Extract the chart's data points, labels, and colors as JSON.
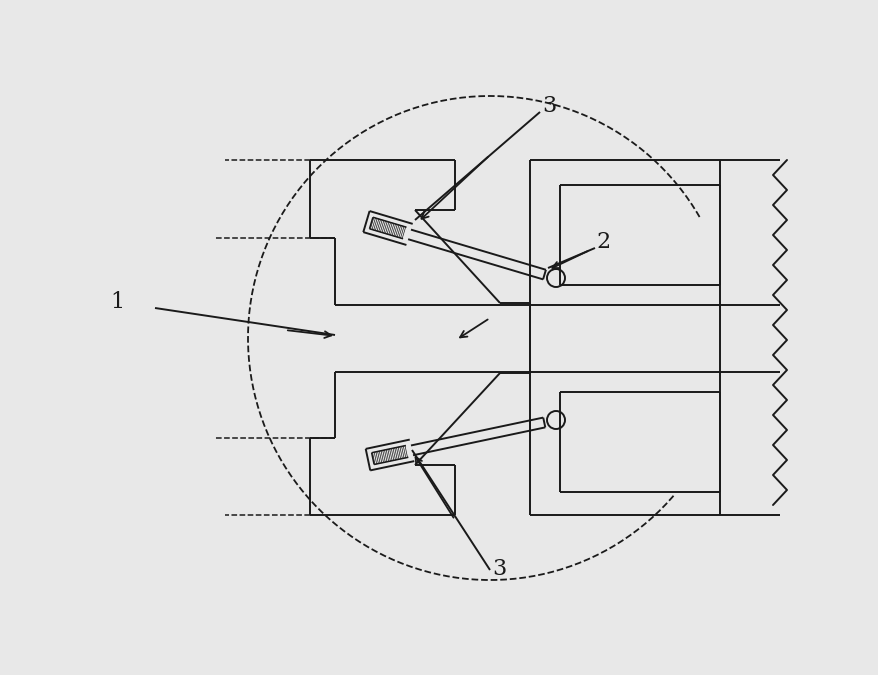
{
  "bg_color": "#e8e8e8",
  "line_color": "#1a1a1a",
  "label_1": "1",
  "label_2": "2",
  "label_3_top": "3",
  "label_3_bot": "3",
  "figsize": [
    8.79,
    6.75
  ],
  "dpi": 100
}
